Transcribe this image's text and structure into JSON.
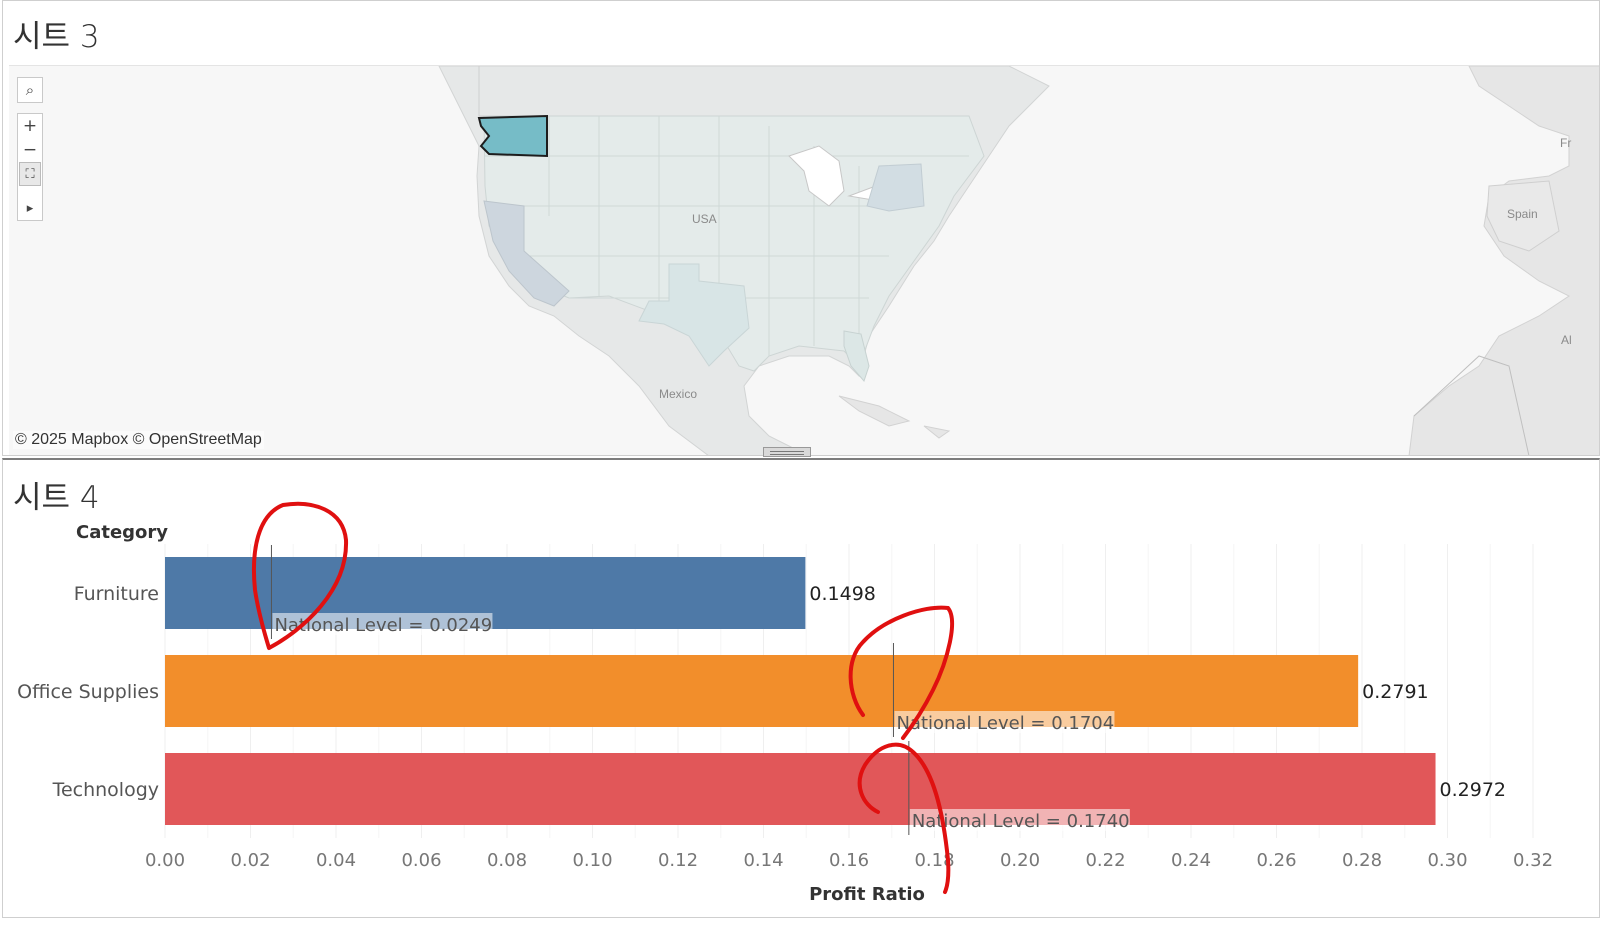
{
  "sheet3": {
    "title": "시트 3",
    "map": {
      "attribution": "© 2025 Mapbox © OpenStreetMap",
      "labels": {
        "usa": "USA",
        "mexico": "Mexico",
        "spain": "Spain",
        "fr": "Fr",
        "al": "Al"
      },
      "highlighted_state": "Washington",
      "highlight_color": "#76bcc7",
      "tools": [
        {
          "name": "search-icon",
          "glyph": "⌕"
        },
        {
          "name": "zoom-in-icon",
          "glyph": "+"
        },
        {
          "name": "zoom-out-icon",
          "glyph": "−"
        },
        {
          "name": "pan-select-icon",
          "glyph": "⛶"
        },
        {
          "name": "expand-arrow-icon",
          "glyph": "▸"
        }
      ]
    }
  },
  "sheet4": {
    "title": "시트 4",
    "chart_data": {
      "type": "bar",
      "orientation": "horizontal",
      "row_header": "Category",
      "xlabel": "Profit Ratio",
      "categories": [
        "Furniture",
        "Office Supplies",
        "Technology"
      ],
      "values": [
        0.1498,
        0.2791,
        0.2972
      ],
      "value_labels": [
        "0.1498",
        "0.2791",
        "0.2972"
      ],
      "colors": [
        "#4e79a7",
        "#f28e2b",
        "#e15759"
      ],
      "reference_lines": [
        {
          "value": 0.0249,
          "label": "National Level = 0.0249"
        },
        {
          "value": 0.1704,
          "label": "National Level = 0.1704"
        },
        {
          "value": 0.174,
          "label": "National Level = 0.1740"
        }
      ],
      "xlim": [
        0,
        0.32
      ],
      "ticks": [
        "0.00",
        "0.02",
        "0.04",
        "0.06",
        "0.08",
        "0.10",
        "0.12",
        "0.14",
        "0.16",
        "0.18",
        "0.20",
        "0.22",
        "0.24",
        "0.26",
        "0.28",
        "0.30",
        "0.32"
      ],
      "grid": true
    },
    "annotation_color": "#e01010"
  }
}
